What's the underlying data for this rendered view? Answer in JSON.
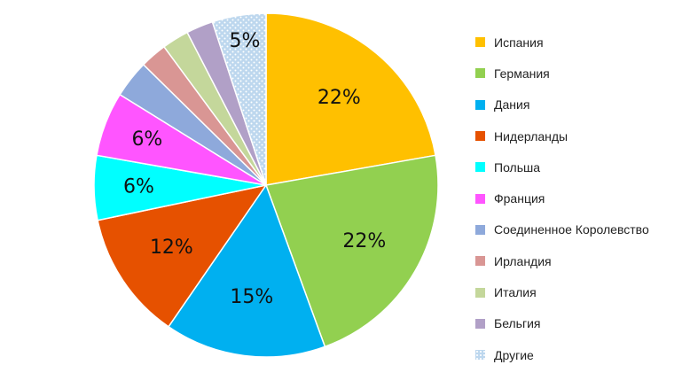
{
  "chart_data": {
    "type": "pie",
    "categories": [
      "Испания",
      "Германия",
      "Дания",
      "Нидерланды",
      "Польша",
      "Франция",
      "Соединенное Королевство",
      "Ирландия",
      "Италия",
      "Бельгия",
      "Другие"
    ],
    "values": [
      22,
      22,
      15,
      12,
      6,
      6,
      3.5,
      2.5,
      2.5,
      2.5,
      5
    ],
    "data_labels": [
      "22%",
      "22%",
      "15%",
      "12%",
      "6%",
      "6%",
      "",
      "",
      "",
      "",
      "5%"
    ],
    "colors": [
      "#FFC000",
      "#92D050",
      "#00B0F0",
      "#E65100",
      "#00FFFF",
      "#FF55FF",
      "#8EA9DB",
      "#D99694",
      "#C4D79B",
      "#B1A0C7",
      "#BDD7EE"
    ],
    "pattern_slices": [
      "Другие"
    ],
    "legend_position": "right",
    "start": "12 o'clock",
    "direction": "clockwise"
  }
}
